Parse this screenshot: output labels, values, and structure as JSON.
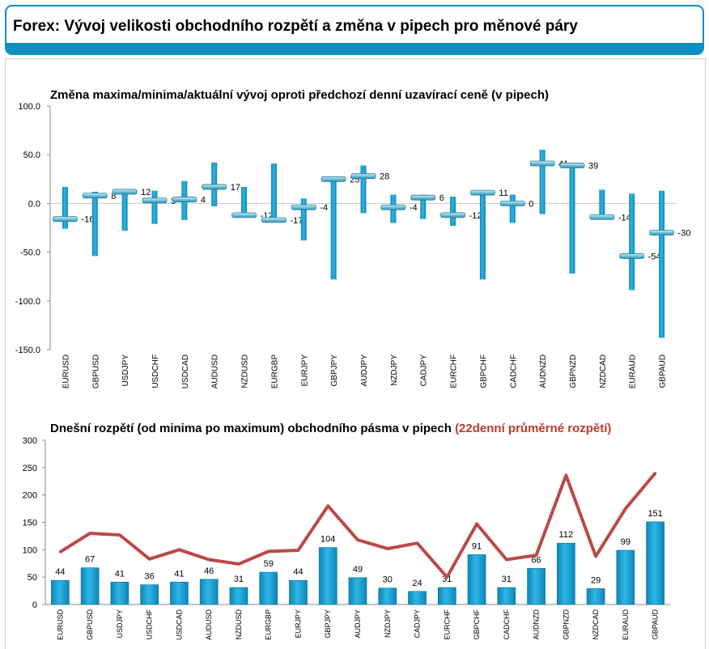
{
  "header": {
    "title": "Forex: Vývoj velikosti obchodního rozpětí a změna v pipech pro měnové páry"
  },
  "colors": {
    "accent": "#0e8fc0",
    "bar": "#1aa3d6",
    "line": "#b94a48",
    "red_text": "#c0392b"
  },
  "chart_data": [
    {
      "type": "bar",
      "title": "Změna maxima/minima/aktuální vývoj oproti předchozí denní uzavírací ceně (v pipech)",
      "categories": [
        "EURUSD",
        "GBPUSD",
        "USDJPY",
        "USDCHF",
        "USDCAD",
        "AUDUSD",
        "NZDUSD",
        "EURGBP",
        "EURJPY",
        "GBPJPY",
        "AUDJPY",
        "NZDJPY",
        "CADJPY",
        "EURCHF",
        "GBPCHF",
        "CADCHF",
        "AUDNZD",
        "GBPNZD",
        "NZDCAD",
        "EURAUD",
        "GBPAUD"
      ],
      "series": [
        {
          "values": [
            17,
            12,
            12,
            13,
            23,
            42,
            17,
            41,
            5,
            25,
            39,
            9,
            9,
            7,
            12,
            9,
            55,
            40,
            14,
            10,
            13
          ]
        },
        {
          "values": [
            -26,
            -54,
            -28,
            -21,
            -17,
            -3,
            -12,
            -17,
            -38,
            -78,
            -10,
            -20,
            -16,
            -23,
            -78,
            -20,
            -11,
            -72,
            -14,
            -89,
            -138
          ]
        },
        {
          "values": [
            -16,
            8,
            12,
            3,
            4,
            17,
            -12,
            -17,
            -4,
            25,
            28,
            -4,
            6,
            -12,
            11,
            0,
            41,
            39,
            -14,
            -54,
            -30
          ]
        }
      ],
      "data_labels": [
        "-16",
        "8",
        "12",
        "3",
        "4",
        "17",
        "-12",
        "-17",
        "-4",
        "25",
        "28",
        "-4",
        "6",
        "-12",
        "11",
        "0",
        "41",
        "39",
        "-14",
        "-54",
        "-30"
      ],
      "ylim": [
        -150,
        100
      ],
      "yticks": [
        "100.0",
        "50.0",
        "0.0",
        "-50.0",
        "-100.0",
        "-150.0"
      ]
    },
    {
      "type": "bar",
      "title": "Dnešní rozpětí (od minima po maximum) obchodního pásma v pipech",
      "title_red": "(22denní průměrné rozpětí)",
      "categories": [
        "EURUSD",
        "GBPUSD",
        "USDJPY",
        "USDCHF",
        "USDCAD",
        "AUDUSD",
        "NZDUSD",
        "EURGBP",
        "EURJPY",
        "GBPJPY",
        "AUDJPY",
        "NZDJPY",
        "CADJPY",
        "EURCHF",
        "GBPCHF",
        "CADCHF",
        "AUDNZD",
        "GBPNZD",
        "NZDCAD",
        "EURAUD",
        "GBPAUD"
      ],
      "series": [
        {
          "values": [
            44,
            67,
            41,
            36,
            41,
            46,
            31,
            59,
            44,
            104,
            49,
            30,
            24,
            31,
            91,
            31,
            66,
            112,
            29,
            99,
            151
          ]
        },
        {
          "values": [
            96,
            130,
            127,
            83,
            100,
            82,
            74,
            97,
            99,
            180,
            118,
            102,
            112,
            50,
            147,
            82,
            90,
            236,
            88,
            175,
            240
          ]
        }
      ],
      "ylim": [
        0,
        300
      ],
      "yticks": [
        "300",
        "250",
        "200",
        "150",
        "100",
        "50",
        "0"
      ]
    }
  ]
}
